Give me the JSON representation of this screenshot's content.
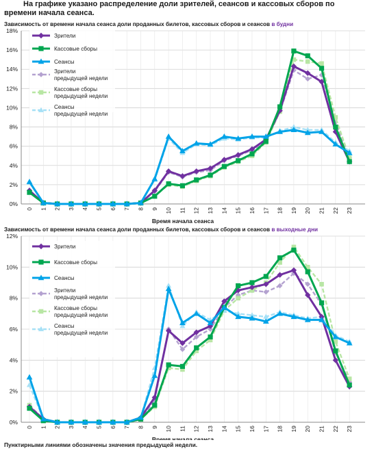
{
  "heading": "На графике указано распределение доли зрителей, сеансов и кассовых сборов по времени начала сеанса.",
  "footnote": "Пунктирными линиями обозначены значения предыдущей недели.",
  "colors": {
    "viewers": "#7030a0",
    "box_office": "#00a650",
    "sessions": "#00a3e8",
    "viewers_prev": "#b4a2d0",
    "box_office_prev": "#b8e6a4",
    "sessions_prev": "#a6e0f6",
    "grid": "#d0d0d0"
  },
  "chart_data": [
    {
      "type": "line",
      "title": "Зависимость от времени начала сеанса доли проданных билетов, кассовых сборов и сеансов",
      "title_accent": "в будни",
      "xlabel": "Время начала сеанса",
      "ylabel": "",
      "ylim": [
        0,
        18
      ],
      "yticks": [
        0,
        2,
        4,
        6,
        8,
        10,
        12,
        14,
        16,
        18
      ],
      "ytick_labels": [
        "0%",
        "2%",
        "4%",
        "6%",
        "8%",
        "10%",
        "12%",
        "14%",
        "16%",
        "18%"
      ],
      "categories": [
        "0",
        "1",
        "2",
        "3",
        "4",
        "5",
        "6",
        "7",
        "8",
        "9",
        "10",
        "11",
        "12",
        "13",
        "14",
        "15",
        "16",
        "17",
        "18",
        "19",
        "20",
        "21",
        "22",
        "23"
      ],
      "grid": true,
      "legend_position": "top-left",
      "series": [
        {
          "name": "Зрители",
          "key": "viewers",
          "style": "solid",
          "marker": "diamond",
          "values": [
            1.4,
            0.1,
            0,
            0,
            0,
            0,
            0,
            0,
            0.1,
            1.4,
            3.4,
            2.9,
            3.4,
            3.7,
            4.6,
            5.1,
            5.7,
            6.7,
            9.7,
            14.3,
            13.6,
            12.7,
            7.5,
            4.4
          ]
        },
        {
          "name": "Кассовые сборы",
          "key": "box_office",
          "style": "solid",
          "marker": "square",
          "values": [
            1.2,
            0.1,
            0,
            0,
            0,
            0,
            0,
            0,
            0.1,
            0.8,
            2.1,
            1.9,
            2.5,
            3.0,
            3.9,
            4.5,
            5.2,
            6.5,
            10.1,
            15.9,
            15.4,
            14.1,
            8.0,
            4.4
          ]
        },
        {
          "name": "Сеансы",
          "key": "sessions",
          "style": "solid",
          "marker": "triangle",
          "values": [
            2.3,
            0.1,
            0,
            0,
            0,
            0,
            0,
            0,
            0.1,
            2.6,
            7.0,
            5.5,
            6.3,
            6.2,
            7.0,
            6.8,
            7.0,
            7.0,
            7.5,
            7.7,
            7.4,
            7.5,
            6.2,
            5.3
          ]
        },
        {
          "name": "Зрители\nпредыдущей недели",
          "key": "viewers_prev",
          "style": "dashed",
          "marker": "diamond",
          "values": [
            1.4,
            0.1,
            0,
            0,
            0,
            0,
            0,
            0,
            0.1,
            1.3,
            3.3,
            2.8,
            3.3,
            3.5,
            4.5,
            5.0,
            5.6,
            6.5,
            9.6,
            13.9,
            13.0,
            13.4,
            8.5,
            4.8
          ]
        },
        {
          "name": "Кассовые сборы\nпредыдущей недели",
          "key": "box_office_prev",
          "style": "dashed",
          "marker": "square",
          "values": [
            1.2,
            0.1,
            0,
            0,
            0,
            0,
            0,
            0,
            0.1,
            0.8,
            2.0,
            1.8,
            2.4,
            2.9,
            3.8,
            4.4,
            5.0,
            6.4,
            9.6,
            15.0,
            14.8,
            14.6,
            9.0,
            4.8
          ]
        },
        {
          "name": "Сеансы\nпредыдущей недели",
          "key": "sessions_prev",
          "style": "dashed",
          "marker": "triangle",
          "values": [
            2.2,
            0.1,
            0,
            0,
            0,
            0,
            0,
            0,
            0.1,
            2.5,
            6.8,
            5.3,
            6.2,
            6.1,
            6.8,
            6.7,
            6.9,
            6.9,
            7.6,
            8.0,
            7.7,
            7.7,
            6.4,
            5.5
          ]
        }
      ]
    },
    {
      "type": "line",
      "title": "Зависимость от времени начала сеанса доли проданных билетов, кассовых сборов и сеансов",
      "title_accent": "в выходные дни",
      "xlabel": "Время начала сеанса",
      "ylabel": "",
      "ylim": [
        0,
        12
      ],
      "yticks": [
        0,
        2,
        4,
        6,
        8,
        10,
        12
      ],
      "ytick_labels": [
        "0%",
        "2%",
        "4%",
        "6%",
        "8%",
        "10%",
        "12%"
      ],
      "categories": [
        "0",
        "1",
        "2",
        "3",
        "4",
        "5",
        "6",
        "7",
        "8",
        "9",
        "10",
        "11",
        "12",
        "13",
        "14",
        "15",
        "16",
        "17",
        "18",
        "19",
        "20",
        "21",
        "22",
        "23"
      ],
      "grid": true,
      "legend_position": "top-left",
      "series": [
        {
          "name": "Зрители",
          "key": "viewers",
          "style": "solid",
          "marker": "diamond",
          "values": [
            1.0,
            0.2,
            0,
            0,
            0,
            0,
            0,
            0,
            0.3,
            1.6,
            5.9,
            5.1,
            5.8,
            6.2,
            7.8,
            8.5,
            8.7,
            8.9,
            9.5,
            9.8,
            8.2,
            6.8,
            4.0,
            2.3
          ]
        },
        {
          "name": "Кассовые сборы",
          "key": "box_office",
          "style": "solid",
          "marker": "square",
          "values": [
            0.9,
            0.1,
            0,
            0,
            0,
            0,
            0,
            0,
            0.2,
            1.1,
            3.7,
            3.6,
            4.8,
            5.5,
            7.4,
            8.8,
            9.0,
            9.4,
            10.6,
            11.1,
            9.7,
            7.7,
            4.6,
            2.4
          ]
        },
        {
          "name": "Сеансы",
          "key": "sessions",
          "style": "solid",
          "marker": "triangle",
          "values": [
            2.9,
            0.2,
            0,
            0,
            0,
            0,
            0,
            0,
            0.3,
            3.0,
            8.6,
            6.4,
            7.0,
            6.4,
            7.4,
            6.8,
            6.7,
            6.5,
            7.0,
            6.8,
            6.6,
            6.6,
            5.5,
            5.1
          ]
        },
        {
          "name": "Зрители\nпредыдущей недели",
          "key": "viewers_prev",
          "style": "dashed",
          "marker": "diamond",
          "values": [
            1.1,
            0.2,
            0,
            0,
            0,
            0,
            0,
            0,
            0.2,
            1.4,
            6.0,
            4.7,
            5.5,
            6.0,
            7.4,
            8.2,
            8.5,
            8.4,
            8.8,
            9.6,
            8.9,
            7.6,
            4.5,
            2.6
          ]
        },
        {
          "name": "Кассовые сборы\nпредыдущей недели",
          "key": "box_office_prev",
          "style": "dashed",
          "marker": "square",
          "values": [
            1.1,
            0.1,
            0,
            0,
            0,
            0,
            0,
            0,
            0.2,
            1.0,
            3.5,
            3.4,
            4.6,
            5.3,
            7.2,
            8.0,
            8.5,
            9.0,
            10.3,
            11.3,
            10.0,
            8.9,
            5.2,
            2.8
          ]
        },
        {
          "name": "Сеансы\nпредыдущей недели",
          "key": "sessions_prev",
          "style": "dashed",
          "marker": "triangle",
          "values": [
            2.4,
            0.2,
            0,
            0,
            0,
            0,
            0,
            0,
            0.3,
            3.5,
            8.8,
            6.2,
            7.1,
            6.6,
            7.2,
            7.0,
            6.9,
            6.8,
            7.1,
            6.9,
            6.7,
            6.8,
            5.6,
            5.2
          ]
        }
      ]
    }
  ]
}
